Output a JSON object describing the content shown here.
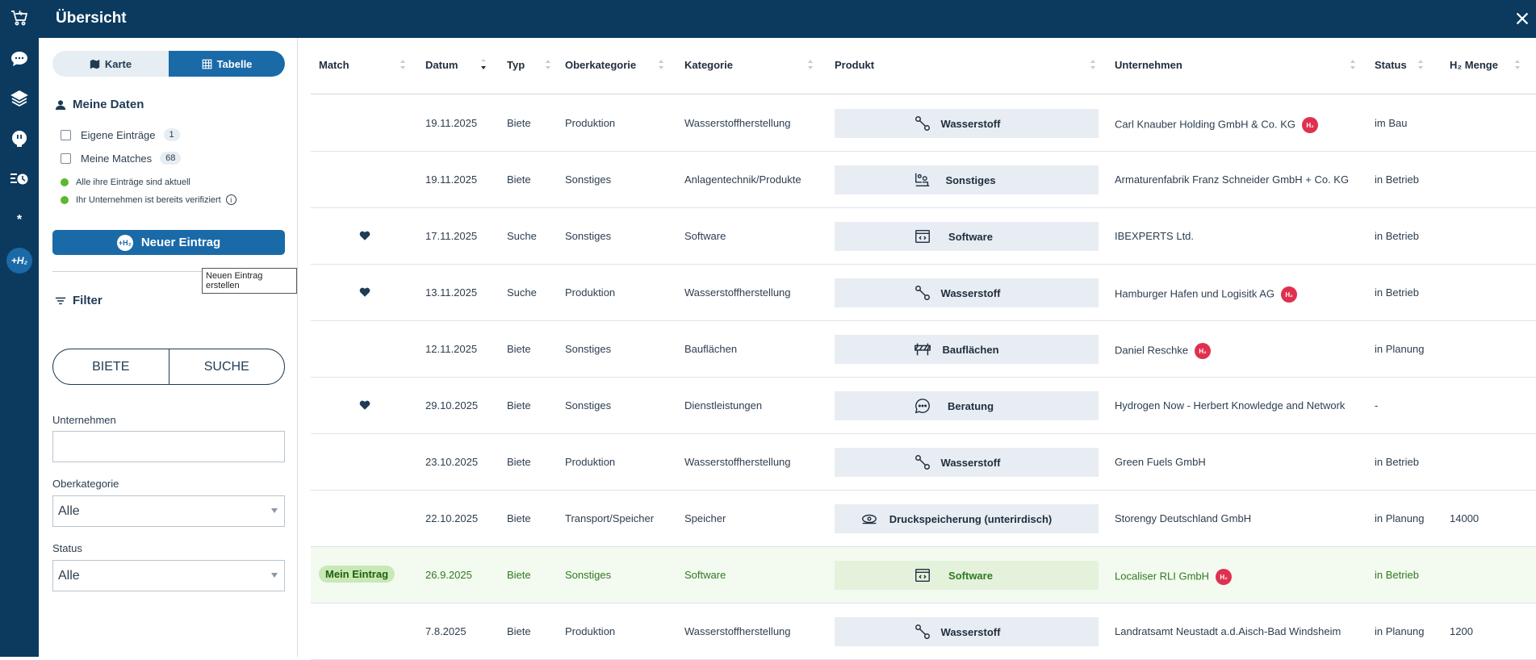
{
  "header": {
    "title": "Übersicht"
  },
  "rail": {
    "items": [
      "cart-h2-icon",
      "chat-icon",
      "layers-icon",
      "plug-icon",
      "list-clock-icon",
      "asterisk-icon",
      "h2-icon"
    ],
    "asterisk": "*",
    "h2_label": "+H₂"
  },
  "view_toggle": {
    "map_label": "Karte",
    "table_label": "Tabelle",
    "active": "Tabelle"
  },
  "my_data": {
    "title": "Meine Daten",
    "own_entries_label": "Eigene Einträge",
    "own_entries_count": "1",
    "my_matches_label": "Meine Matches",
    "my_matches_count": "68",
    "status_1": "Alle ihre Einträge sind aktuell",
    "status_2": "Ihr Unternehmen ist bereits verifiziert"
  },
  "new_entry": {
    "label": "Neuer Eintrag",
    "badge": "+H₂",
    "tooltip": "Neuen Eintrag erstellen"
  },
  "filter": {
    "title": "Filter",
    "offer_label": "BIETE",
    "search_label": "SUCHE",
    "company_label": "Unternehmen",
    "company_value": "",
    "category_label": "Oberkategorie",
    "category_value": "Alle",
    "status_label": "Status",
    "status_value": "Alle"
  },
  "table": {
    "columns": [
      "Match",
      "Datum",
      "Typ",
      "Oberkategorie",
      "Kategorie",
      "Produkt",
      "Unternehmen",
      "Status",
      "H₂ Menge"
    ],
    "h2_badge": "H₂",
    "mine_label": "Mein Eintrag",
    "rows": [
      {
        "match": "",
        "date": "19.11.2025",
        "type": "Biete",
        "category": "Produktion",
        "subcategory": "Wasserstoffherstellung",
        "product": "Wasserstoff",
        "product_icon": "molecule-icon",
        "company": "Carl Knauber Holding GmbH & Co. KG",
        "verified": true,
        "status": "im Bau",
        "amount": ""
      },
      {
        "match": "",
        "date": "19.11.2025",
        "type": "Biete",
        "category": "Sonstiges",
        "subcategory": "Anlagentechnik/Produkte",
        "product": "Sonstiges",
        "product_icon": "machinery-icon",
        "company": "Armaturenfabrik Franz Schneider GmbH + Co. KG",
        "verified": false,
        "status": "in Betrieb",
        "amount": ""
      },
      {
        "match": "heart",
        "date": "17.11.2025",
        "type": "Suche",
        "category": "Sonstiges",
        "subcategory": "Software",
        "product": "Software",
        "product_icon": "code-window-icon",
        "company": "IBEXPERTS Ltd.",
        "verified": false,
        "status": "in Betrieb",
        "amount": ""
      },
      {
        "match": "heart",
        "date": "13.11.2025",
        "type": "Suche",
        "category": "Produktion",
        "subcategory": "Wasserstoffherstellung",
        "product": "Wasserstoff",
        "product_icon": "molecule-icon",
        "company": "Hamburger Hafen und Logisitk AG",
        "verified": true,
        "status": "in Betrieb",
        "amount": ""
      },
      {
        "match": "",
        "date": "12.11.2025",
        "type": "Biete",
        "category": "Sonstiges",
        "subcategory": "Bauflächen",
        "product": "Bauflächen",
        "product_icon": "barrier-icon",
        "company": "Daniel Reschke",
        "verified": true,
        "status": "in Planung",
        "amount": ""
      },
      {
        "match": "heart",
        "date": "29.10.2025",
        "type": "Biete",
        "category": "Sonstiges",
        "subcategory": "Dienstleistungen",
        "product": "Beratung",
        "product_icon": "speech-bubble-icon",
        "company": "Hydrogen Now - Herbert Knowledge and Network",
        "verified": false,
        "status": "-",
        "amount": ""
      },
      {
        "match": "",
        "date": "23.10.2025",
        "type": "Biete",
        "category": "Produktion",
        "subcategory": "Wasserstoffherstellung",
        "product": "Wasserstoff",
        "product_icon": "molecule-icon",
        "company": "Green Fuels GmbH",
        "verified": false,
        "status": "in Betrieb",
        "amount": ""
      },
      {
        "match": "",
        "date": "22.10.2025",
        "type": "Biete",
        "category": "Transport/Speicher",
        "subcategory": "Speicher",
        "product": "Druckspeicherung (unterirdisch)",
        "product_icon": "storage-icon",
        "company": "Storengy Deutschland GmbH",
        "verified": false,
        "status": "in Planung",
        "amount": "14000"
      },
      {
        "match": "mine",
        "date": "26.9.2025",
        "type": "Biete",
        "category": "Sonstiges",
        "subcategory": "Software",
        "product": "Software",
        "product_icon": "code-window-icon",
        "company": "Localiser RLI GmbH",
        "verified": true,
        "status": "in Betrieb",
        "amount": ""
      },
      {
        "match": "",
        "date": "7.8.2025",
        "type": "Biete",
        "category": "Produktion",
        "subcategory": "Wasserstoffherstellung",
        "product": "Wasserstoff",
        "product_icon": "molecule-icon",
        "company": "Landratsamt Neustadt a.d.Aisch-Bad Windsheim",
        "verified": false,
        "status": "in Planung",
        "amount": "1200"
      }
    ]
  }
}
